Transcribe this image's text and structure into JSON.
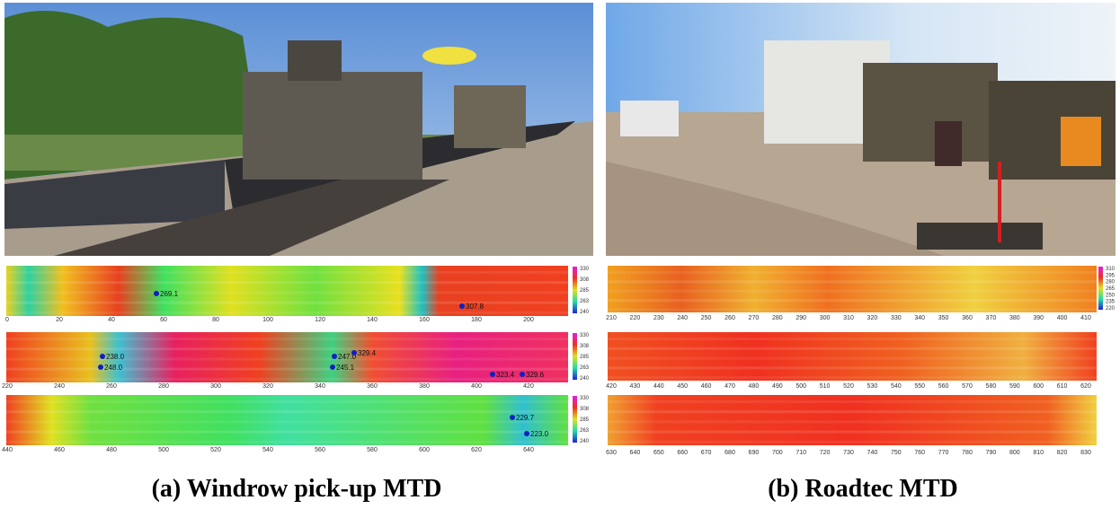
{
  "panels": [
    {
      "caption": "(a) Windrow pick-up MTD",
      "strips": [
        {
          "ticks": [
            0,
            20,
            40,
            60,
            80,
            100,
            120,
            140,
            160,
            180,
            200
          ],
          "colorbar": [
            330,
            308,
            285,
            263,
            240
          ],
          "annotations": [
            "269.1",
            "307.8"
          ]
        },
        {
          "ticks": [
            220,
            240,
            260,
            280,
            300,
            320,
            340,
            360,
            380,
            400,
            420
          ],
          "colorbar": [
            330,
            308,
            285,
            263,
            240
          ],
          "annotations": [
            "238.0",
            "248.0",
            "247.0",
            "329.4",
            "245.1",
            "323.4",
            "329.6"
          ]
        },
        {
          "ticks": [
            440,
            460,
            480,
            500,
            520,
            540,
            560,
            580,
            600,
            620,
            640
          ],
          "colorbar": [
            330,
            308,
            285,
            263,
            240
          ],
          "annotations": [
            "229.7",
            "223.0"
          ]
        }
      ]
    },
    {
      "caption": "(b) Roadtec MTD",
      "strips": [
        {
          "ticks": [
            210,
            220,
            230,
            240,
            250,
            260,
            270,
            280,
            290,
            300,
            310,
            320,
            330,
            340,
            350,
            360,
            370,
            380,
            390,
            400,
            410
          ],
          "colorbar": [
            310,
            295,
            280,
            265,
            250,
            235,
            220
          ],
          "annotations": []
        },
        {
          "ticks": [
            420,
            430,
            440,
            450,
            460,
            470,
            480,
            490,
            500,
            510,
            520,
            530,
            540,
            550,
            560,
            570,
            580,
            590,
            600,
            610,
            620
          ],
          "colorbar": [],
          "annotations": []
        },
        {
          "ticks": [
            630,
            640,
            650,
            660,
            670,
            680,
            690,
            700,
            710,
            720,
            730,
            740,
            750,
            760,
            770,
            780,
            790,
            800,
            810,
            820,
            830
          ],
          "colorbar": [],
          "annotations": []
        }
      ]
    }
  ]
}
